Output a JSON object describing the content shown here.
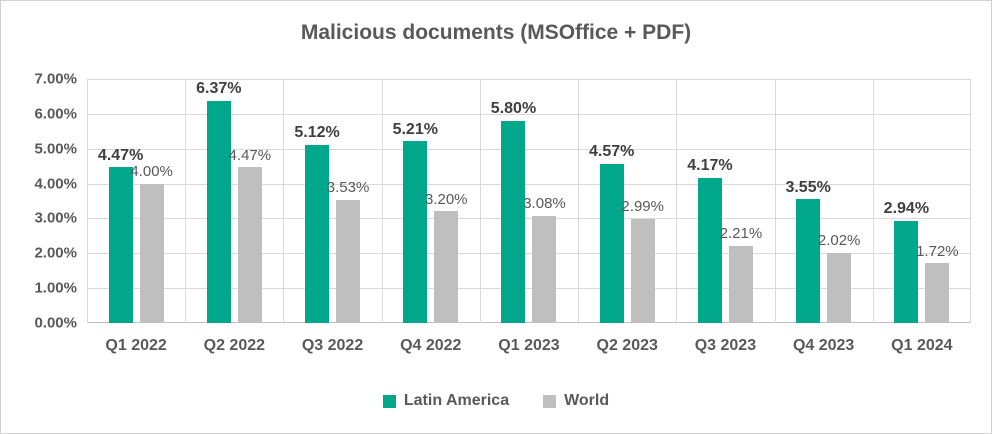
{
  "chart_data": {
    "type": "bar",
    "title": "Malicious documents (MSOffice + PDF)",
    "categories": [
      "Q1 2022",
      "Q2 2022",
      "Q3 2022",
      "Q4 2022",
      "Q1 2023",
      "Q2 2023",
      "Q3 2023",
      "Q4 2023",
      "Q1 2024"
    ],
    "series": [
      {
        "name": "Latin America",
        "color": "#00A78B",
        "values": [
          4.47,
          6.37,
          5.12,
          5.21,
          5.8,
          4.57,
          4.17,
          3.55,
          2.94
        ],
        "labels": [
          "4.47%",
          "6.37%",
          "5.12%",
          "5.21%",
          "5.80%",
          "4.57%",
          "4.17%",
          "3.55%",
          "2.94%"
        ]
      },
      {
        "name": "World",
        "color": "#BFBFBF",
        "values": [
          4.0,
          4.47,
          3.53,
          3.2,
          3.08,
          2.99,
          2.21,
          2.02,
          1.72
        ],
        "labels": [
          "4.00%",
          "4.47%",
          "3.53%",
          "3.20%",
          "3.08%",
          "2.99%",
          "2.21%",
          "2.02%",
          "1.72%"
        ]
      }
    ],
    "xlabel": "",
    "ylabel": "",
    "ylim": [
      0,
      7
    ],
    "y_ticks": [
      "0.00%",
      "1.00%",
      "2.00%",
      "3.00%",
      "4.00%",
      "5.00%",
      "6.00%",
      "7.00%"
    ],
    "grid": true,
    "legend_position": "bottom"
  },
  "colors": {
    "latin_america": "#00A78B",
    "world": "#BFBFBF",
    "gridline": "#D9D9D9",
    "axis_line": "#BFBFBF",
    "axis_text": "#595959",
    "series1_label_text": "#3F3F3F",
    "border": "#D2D2D2",
    "background": "#FFFFFF"
  }
}
